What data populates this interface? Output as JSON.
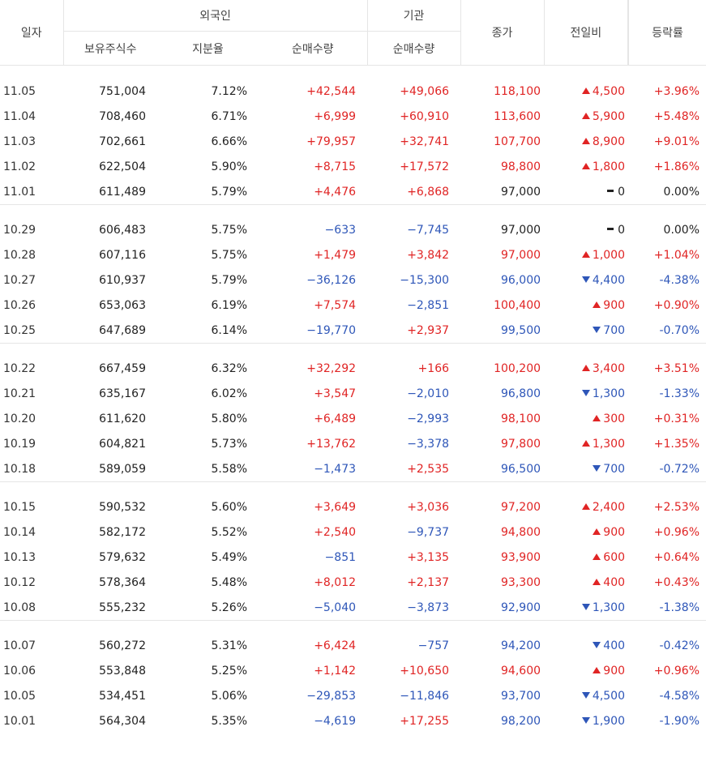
{
  "header": {
    "date": "일자",
    "foreign": "외국인",
    "institution": "기관",
    "close": "종가",
    "diff": "전일비",
    "rate": "등락률",
    "holdings": "보유주식수",
    "ratio": "지분율",
    "foreign_net": "순매수량",
    "inst_net": "순매수량"
  },
  "colors": {
    "up": "#e02424",
    "down": "#2e56b8",
    "flat": "#222222"
  },
  "groups": [
    [
      {
        "date": "11.05",
        "holdings": "751,004",
        "ratio": "7.12%",
        "fnet": "+42,544",
        "inet": "+49,066",
        "close": "118,100",
        "dir": "up",
        "diff": "4,500",
        "rate": "+3.96%"
      },
      {
        "date": "11.04",
        "holdings": "708,460",
        "ratio": "6.71%",
        "fnet": "+6,999",
        "inet": "+60,910",
        "close": "113,600",
        "dir": "up",
        "diff": "5,900",
        "rate": "+5.48%"
      },
      {
        "date": "11.03",
        "holdings": "702,661",
        "ratio": "6.66%",
        "fnet": "+79,957",
        "inet": "+32,741",
        "close": "107,700",
        "dir": "up",
        "diff": "8,900",
        "rate": "+9.01%"
      },
      {
        "date": "11.02",
        "holdings": "622,504",
        "ratio": "5.90%",
        "fnet": "+8,715",
        "inet": "+17,572",
        "close": "98,800",
        "dir": "up",
        "diff": "1,800",
        "rate": "+1.86%"
      },
      {
        "date": "11.01",
        "holdings": "611,489",
        "ratio": "5.79%",
        "fnet": "+4,476",
        "inet": "+6,868",
        "close": "97,000",
        "dir": "flat",
        "diff": "0",
        "rate": "0.00%"
      }
    ],
    [
      {
        "date": "10.29",
        "holdings": "606,483",
        "ratio": "5.75%",
        "fnet": "−633",
        "inet": "−7,745",
        "close": "97,000",
        "dir": "flat",
        "diff": "0",
        "rate": "0.00%"
      },
      {
        "date": "10.28",
        "holdings": "607,116",
        "ratio": "5.75%",
        "fnet": "+1,479",
        "inet": "+3,842",
        "close": "97,000",
        "dir": "up",
        "diff": "1,000",
        "rate": "+1.04%"
      },
      {
        "date": "10.27",
        "holdings": "610,937",
        "ratio": "5.79%",
        "fnet": "−36,126",
        "inet": "−15,300",
        "close": "96,000",
        "dir": "down",
        "diff": "4,400",
        "rate": "-4.38%"
      },
      {
        "date": "10.26",
        "holdings": "653,063",
        "ratio": "6.19%",
        "fnet": "+7,574",
        "inet": "−2,851",
        "close": "100,400",
        "dir": "up",
        "diff": "900",
        "rate": "+0.90%"
      },
      {
        "date": "10.25",
        "holdings": "647,689",
        "ratio": "6.14%",
        "fnet": "−19,770",
        "inet": "+2,937",
        "close": "99,500",
        "dir": "down",
        "diff": "700",
        "rate": "-0.70%"
      }
    ],
    [
      {
        "date": "10.22",
        "holdings": "667,459",
        "ratio": "6.32%",
        "fnet": "+32,292",
        "inet": "+166",
        "close": "100,200",
        "dir": "up",
        "diff": "3,400",
        "rate": "+3.51%"
      },
      {
        "date": "10.21",
        "holdings": "635,167",
        "ratio": "6.02%",
        "fnet": "+3,547",
        "inet": "−2,010",
        "close": "96,800",
        "dir": "down",
        "diff": "1,300",
        "rate": "-1.33%"
      },
      {
        "date": "10.20",
        "holdings": "611,620",
        "ratio": "5.80%",
        "fnet": "+6,489",
        "inet": "−2,993",
        "close": "98,100",
        "dir": "up",
        "diff": "300",
        "rate": "+0.31%"
      },
      {
        "date": "10.19",
        "holdings": "604,821",
        "ratio": "5.73%",
        "fnet": "+13,762",
        "inet": "−3,378",
        "close": "97,800",
        "dir": "up",
        "diff": "1,300",
        "rate": "+1.35%"
      },
      {
        "date": "10.18",
        "holdings": "589,059",
        "ratio": "5.58%",
        "fnet": "−1,473",
        "inet": "+2,535",
        "close": "96,500",
        "dir": "down",
        "diff": "700",
        "rate": "-0.72%"
      }
    ],
    [
      {
        "date": "10.15",
        "holdings": "590,532",
        "ratio": "5.60%",
        "fnet": "+3,649",
        "inet": "+3,036",
        "close": "97,200",
        "dir": "up",
        "diff": "2,400",
        "rate": "+2.53%"
      },
      {
        "date": "10.14",
        "holdings": "582,172",
        "ratio": "5.52%",
        "fnet": "+2,540",
        "inet": "−9,737",
        "close": "94,800",
        "dir": "up",
        "diff": "900",
        "rate": "+0.96%"
      },
      {
        "date": "10.13",
        "holdings": "579,632",
        "ratio": "5.49%",
        "fnet": "−851",
        "inet": "+3,135",
        "close": "93,900",
        "dir": "up",
        "diff": "600",
        "rate": "+0.64%"
      },
      {
        "date": "10.12",
        "holdings": "578,364",
        "ratio": "5.48%",
        "fnet": "+8,012",
        "inet": "+2,137",
        "close": "93,300",
        "dir": "up",
        "diff": "400",
        "rate": "+0.43%"
      },
      {
        "date": "10.08",
        "holdings": "555,232",
        "ratio": "5.26%",
        "fnet": "−5,040",
        "inet": "−3,873",
        "close": "92,900",
        "dir": "down",
        "diff": "1,300",
        "rate": "-1.38%"
      }
    ],
    [
      {
        "date": "10.07",
        "holdings": "560,272",
        "ratio": "5.31%",
        "fnet": "+6,424",
        "inet": "−757",
        "close": "94,200",
        "dir": "down",
        "diff": "400",
        "rate": "-0.42%"
      },
      {
        "date": "10.06",
        "holdings": "553,848",
        "ratio": "5.25%",
        "fnet": "+1,142",
        "inet": "+10,650",
        "close": "94,600",
        "dir": "up",
        "diff": "900",
        "rate": "+0.96%"
      },
      {
        "date": "10.05",
        "holdings": "534,451",
        "ratio": "5.06%",
        "fnet": "−29,853",
        "inet": "−11,846",
        "close": "93,700",
        "dir": "down",
        "diff": "4,500",
        "rate": "-4.58%"
      },
      {
        "date": "10.01",
        "holdings": "564,304",
        "ratio": "5.35%",
        "fnet": "−4,619",
        "inet": "+17,255",
        "close": "98,200",
        "dir": "down",
        "diff": "1,900",
        "rate": "-1.90%"
      }
    ]
  ]
}
